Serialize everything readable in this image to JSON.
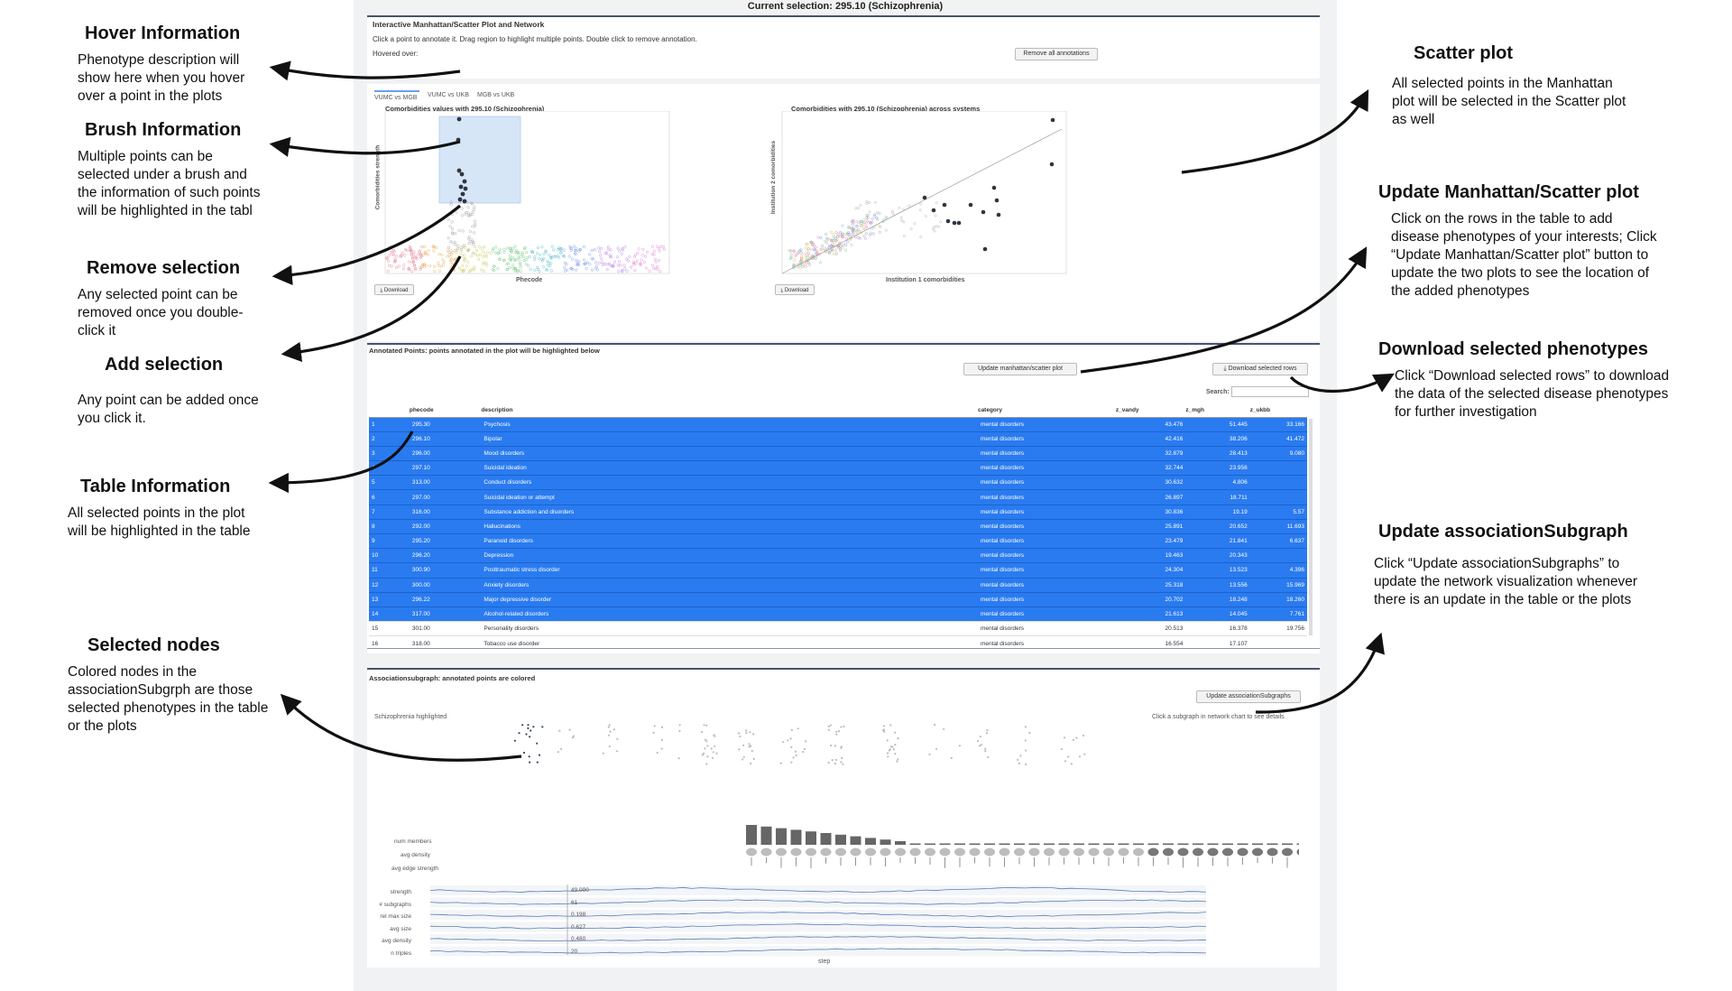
{
  "annotations_left": [
    {
      "title": "Hover Information",
      "text": "Phenotype description will show here when you hover over a point in the plots"
    },
    {
      "title": "Brush Information",
      "text": "Multiple points can be selected under a brush and the information of such points will be highlighted in the tabl"
    },
    {
      "title": "Remove selection",
      "text": "Any selected point can be removed once you double-click it"
    },
    {
      "title": "Add selection",
      "text": "Any point can be added once you click it."
    },
    {
      "title": "Table Information",
      "text": "All selected points in the plot will be highlighted in the table"
    },
    {
      "title": "Selected nodes",
      "text": "Colored nodes in the associationSubgrph are those selected phenotypes in the table or the plots"
    }
  ],
  "annotations_right": [
    {
      "title": "Scatter plot",
      "text": "All selected points in the Manhattan plot will be selected in the Scatter plot as well"
    },
    {
      "title": "Update Manhattan/Scatter plot",
      "text": "Click on the rows in the table to add disease phenotypes of your interests; Click “Update Manhattan/Scatter plot” button to update the two plots to see the location of the added phenotypes"
    },
    {
      "title": "Download selected phenotypes",
      "text": "Click “Download selected rows” to download the data of the selected disease phenotypes for further investigation"
    },
    {
      "title": "Update associationSubgraph",
      "text": "Click “Update associationSubgraphs” to update the network visualization whenever there is an update in the table or the plots"
    }
  ],
  "app": {
    "current_selection": "Current selection: 295.10 (Schizophrenia)",
    "section_title": "Interactive Manhattan/Scatter Plot and Network",
    "instructions": "Click a point to annotate it. Drag region to highlight multiple points. Double click to remove annotation.",
    "hovered_label": "Hovered over:",
    "remove_all_button": "Remove all annotations",
    "tabs": [
      "VUMC vs MGB",
      "VUMC vs UKB",
      "MGB vs UKB"
    ],
    "manhattan_title": "Comorbidities values with 295.10 (Schizophrenia)",
    "manhattan_xlabel": "Phecode",
    "manhattan_ylabel": "Comorbidities strength",
    "scatter_title": "Comorbidities with 295.10 (Schizophrenia) across systems",
    "scatter_xlabel": "Institution 1 comorbidities",
    "scatter_ylabel": "Institution 2 comorbidities",
    "download_label": "Download",
    "annotated_title": "Annotated Points: points annotated in the plot will be highlighted below",
    "update_plot_button": "Update manhattan/scatter plot",
    "download_rows_button": "Download selected rows",
    "search_label": "Search:",
    "subgraph_title": "Associationsubgraph: annotated points are colored",
    "update_subgraph_button": "Update associationSubgraphs",
    "highlight_note": "Schizophrenia highlighted",
    "subgraph_hint": "Click a subgraph in network chart to see details",
    "bar_labels": [
      "num members",
      "avg density",
      "avg edge strength"
    ],
    "line_labels": [
      "strength",
      "# subgraphs",
      "rel max size",
      "avg size",
      "avg density",
      "n triples"
    ],
    "line_values": [
      "49.000",
      "61",
      "0.198",
      "0.627",
      "0.480",
      "20"
    ],
    "x_label": "step"
  },
  "table": {
    "columns": [
      "",
      "phecode",
      "description",
      "category",
      "z_vandy",
      "z_mgh",
      "z_ukbb"
    ],
    "rows": [
      {
        "n": "1",
        "phecode": "295.30",
        "desc": "Psychosis",
        "cat": "mental disorders",
        "a": "43.476",
        "b": "51.445",
        "c": "33.166",
        "selected": true
      },
      {
        "n": "2",
        "phecode": "296.10",
        "desc": "Bipolar",
        "cat": "mental disorders",
        "a": "42.416",
        "b": "38.206",
        "c": "41.472",
        "selected": true
      },
      {
        "n": "3",
        "phecode": "296.00",
        "desc": "Mood disorders",
        "cat": "mental disorders",
        "a": "32.879",
        "b": "28.413",
        "c": "9.080",
        "selected": true
      },
      {
        "n": "4",
        "phecode": "297.10",
        "desc": "Suicidal ideation",
        "cat": "mental disorders",
        "a": "32.744",
        "b": "23.956",
        "c": "",
        "selected": true
      },
      {
        "n": "5",
        "phecode": "313.00",
        "desc": "Conduct disorders",
        "cat": "mental disorders",
        "a": "30.632",
        "b": "4.806",
        "c": "",
        "selected": true
      },
      {
        "n": "6",
        "phecode": "297.00",
        "desc": "Suicidal ideation or attempt",
        "cat": "mental disorders",
        "a": "26.897",
        "b": "18.711",
        "c": "",
        "selected": true
      },
      {
        "n": "7",
        "phecode": "316.00",
        "desc": "Substance addiction and disorders",
        "cat": "mental disorders",
        "a": "30.836",
        "b": "19.19",
        "c": "5.57",
        "selected": true
      },
      {
        "n": "8",
        "phecode": "292.00",
        "desc": "Hallucinations",
        "cat": "mental disorders",
        "a": "25.891",
        "b": "20.652",
        "c": "11.693",
        "selected": true
      },
      {
        "n": "9",
        "phecode": "295.20",
        "desc": "Paranoid disorders",
        "cat": "mental disorders",
        "a": "23.479",
        "b": "21.841",
        "c": "6.637",
        "selected": true
      },
      {
        "n": "10",
        "phecode": "296.20",
        "desc": "Depression",
        "cat": "mental disorders",
        "a": "19.463",
        "b": "20.343",
        "c": "",
        "selected": true
      },
      {
        "n": "11",
        "phecode": "300.90",
        "desc": "Posttraumatic stress disorder",
        "cat": "mental disorders",
        "a": "24.304",
        "b": "13.523",
        "c": "4.396",
        "selected": true
      },
      {
        "n": "12",
        "phecode": "300.00",
        "desc": "Anxiety disorders",
        "cat": "mental disorders",
        "a": "25.318",
        "b": "13.556",
        "c": "15.969",
        "selected": true
      },
      {
        "n": "13",
        "phecode": "296.22",
        "desc": "Major depressive disorder",
        "cat": "mental disorders",
        "a": "20.702",
        "b": "18.248",
        "c": "18.260",
        "selected": true
      },
      {
        "n": "14",
        "phecode": "317.00",
        "desc": "Alcohol-related disorders",
        "cat": "mental disorders",
        "a": "21.613",
        "b": "14.045",
        "c": "7.761",
        "selected": true
      },
      {
        "n": "15",
        "phecode": "301.00",
        "desc": "Personality disorders",
        "cat": "mental disorders",
        "a": "20.513",
        "b": "16.378",
        "c": "19.756",
        "selected": false
      },
      {
        "n": "16",
        "phecode": "318.00",
        "desc": "Tobacco use disorder",
        "cat": "mental disorders",
        "a": "16.554",
        "b": "17.107",
        "c": "",
        "selected": false
      }
    ]
  },
  "colors": {
    "selected_row": "#2a7bf0",
    "brush": "#cfe2f7",
    "point": "#2f3640"
  }
}
